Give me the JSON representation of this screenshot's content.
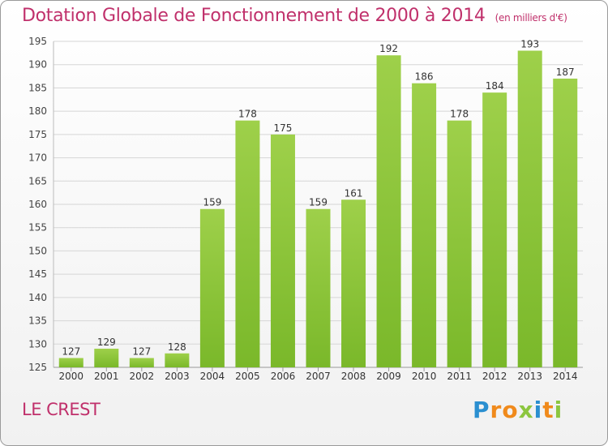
{
  "chart_data": {
    "type": "bar",
    "title": "Dotation Globale de Fonctionnement de 2000 à 2014",
    "subtitle": "(en milliers d'€)",
    "categories": [
      "2000",
      "2001",
      "2002",
      "2003",
      "2004",
      "2005",
      "2006",
      "2007",
      "2008",
      "2009",
      "2010",
      "2011",
      "2012",
      "2013",
      "2014"
    ],
    "values": [
      127,
      129,
      127,
      128,
      159,
      178,
      175,
      159,
      161,
      192,
      186,
      178,
      184,
      193,
      187
    ],
    "ylim": [
      125,
      195
    ],
    "yticks": [
      125,
      130,
      135,
      140,
      145,
      150,
      155,
      160,
      165,
      170,
      175,
      180,
      185,
      190,
      195
    ],
    "grid": true,
    "bar_color": "#7ab82a",
    "bar_color_light": "#9ed04a",
    "title_color": "#c0306b"
  },
  "place_label": "LE CREST",
  "logo": {
    "text": "Proxiti",
    "letters": [
      {
        "ch": "P",
        "color": "#2b8fd0"
      },
      {
        "ch": "r",
        "color": "#f08a1c"
      },
      {
        "ch": "o",
        "color": "#f08a1c"
      },
      {
        "ch": "x",
        "color": "#8cc63f"
      },
      {
        "ch": "i",
        "color": "#2b8fd0"
      },
      {
        "ch": "t",
        "color": "#f08a1c"
      },
      {
        "ch": "i",
        "color": "#8cc63f"
      }
    ]
  }
}
